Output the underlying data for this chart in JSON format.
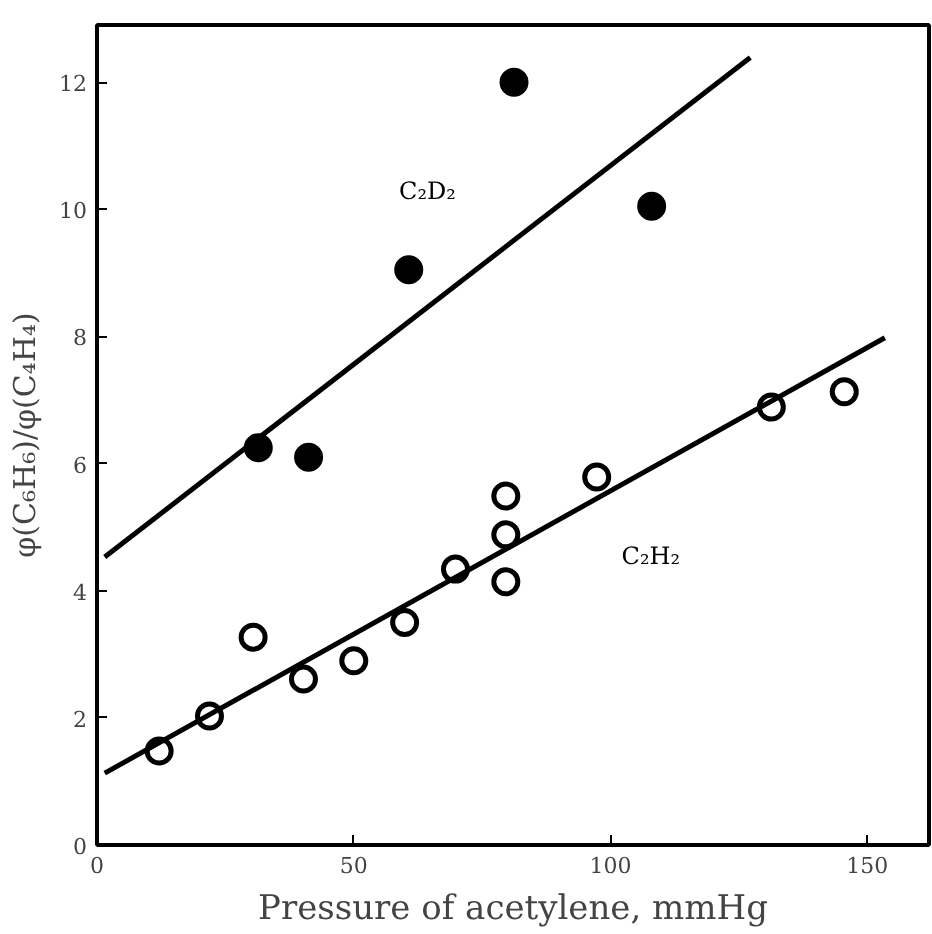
{
  "chart_data": {
    "type": "scatter",
    "xlabel": "Pressure of acetylene, mmHg",
    "ylabel": "φ(C₆H₆)/φ(C₄H₄)",
    "xlim": [
      0,
      162
    ],
    "ylim": [
      0,
      12.9
    ],
    "xticks": [
      0,
      50,
      100,
      150
    ],
    "yticks": [
      0,
      2,
      4,
      6,
      8,
      10,
      12
    ],
    "grid": false,
    "series": [
      {
        "color": "#000000",
        "marker": "circle",
        "x": [
          31.4,
          41.2,
          60.7,
          81.2,
          108
        ],
        "values": [
          6.25,
          6.1,
          9.05,
          12.0,
          10.05
        ]
      },
      {
        "color": "#ffffff",
        "marker": "circle",
        "x": [
          12.1,
          21.9,
          30.4,
          40.2,
          50,
          59.9,
          69.8,
          79.6,
          79.6,
          79.6,
          97.3,
          131.3,
          145.5
        ],
        "values": [
          1.48,
          2.03,
          3.27,
          2.61,
          2.9,
          3.5,
          4.34,
          5.49,
          4.88,
          4.14,
          5.79,
          6.89,
          7.13
        ]
      },
      {
        "type": "line",
        "name": "C₂D₂",
        "color": "#000000",
        "x": [
          1.5,
          127.2
        ],
        "values": [
          4.53,
          12.39
        ]
      },
      {
        "type": "line",
        "name": "C₂H₂",
        "color": "#000000",
        "x": [
          1.5,
          153.4
        ],
        "values": [
          1.13,
          7.98
        ]
      }
    ]
  }
}
